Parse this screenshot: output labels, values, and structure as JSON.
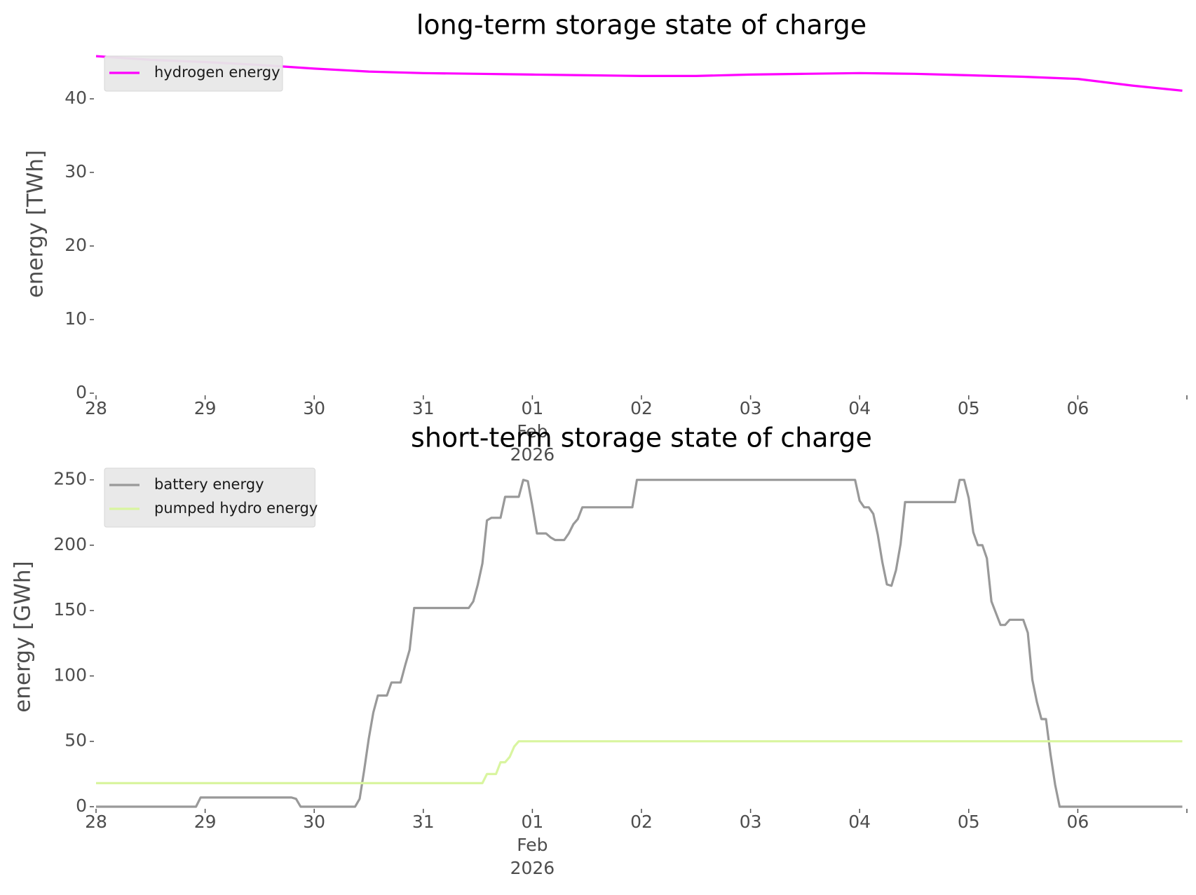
{
  "chart_data": [
    {
      "type": "line",
      "title": "long-term storage state of charge",
      "xlabel": "",
      "ylabel": "energy [TWh]",
      "xlim": [
        "2026-01-28",
        "2026-02-06T24:00"
      ],
      "ylim": [
        0,
        46
      ],
      "grid": false,
      "legend_position": "top-left",
      "x_tick_labels": [
        {
          "x": "2026-01-28",
          "label": "28"
        },
        {
          "x": "2026-01-29",
          "label": "29"
        },
        {
          "x": "2026-01-30",
          "label": "30"
        },
        {
          "x": "2026-01-31",
          "label": "31"
        },
        {
          "x": "2026-02-01",
          "label": "01"
        },
        {
          "x": "2026-02-02",
          "label": "02"
        },
        {
          "x": "2026-02-03",
          "label": "03"
        },
        {
          "x": "2026-02-04",
          "label": "04"
        },
        {
          "x": "2026-02-05",
          "label": "05"
        },
        {
          "x": "2026-02-06",
          "label": "06"
        }
      ],
      "x_tick_sublabel": {
        "x": "2026-02-01",
        "lines": [
          "Feb",
          "2026"
        ]
      },
      "y_ticks": [
        0,
        10,
        20,
        30,
        40
      ],
      "series": [
        {
          "name": "hydrogen energy",
          "color": "#ff00ff",
          "points": [
            [
              "2026-01-28T00:00",
              45.8
            ],
            [
              "2026-01-28T12:00",
              45.3
            ],
            [
              "2026-01-29T00:00",
              45.0
            ],
            [
              "2026-01-29T12:00",
              44.6
            ],
            [
              "2026-01-30T00:00",
              44.1
            ],
            [
              "2026-01-30T12:00",
              43.7
            ],
            [
              "2026-01-31T00:00",
              43.5
            ],
            [
              "2026-01-31T12:00",
              43.4
            ],
            [
              "2026-02-01T00:00",
              43.3
            ],
            [
              "2026-02-01T12:00",
              43.2
            ],
            [
              "2026-02-02T00:00",
              43.1
            ],
            [
              "2026-02-02T12:00",
              43.1
            ],
            [
              "2026-02-03T00:00",
              43.3
            ],
            [
              "2026-02-03T12:00",
              43.4
            ],
            [
              "2026-02-04T00:00",
              43.5
            ],
            [
              "2026-02-04T12:00",
              43.4
            ],
            [
              "2026-02-05T00:00",
              43.2
            ],
            [
              "2026-02-05T12:00",
              43.0
            ],
            [
              "2026-02-06T00:00",
              42.7
            ],
            [
              "2026-02-06T12:00",
              41.8
            ],
            [
              "2026-02-06T23:00",
              41.1
            ]
          ]
        }
      ]
    },
    {
      "type": "line",
      "title": "short-term storage state of charge",
      "xlabel": "",
      "ylabel": "energy [GWh]",
      "xlim": [
        "2026-01-28",
        "2026-02-06T24:00"
      ],
      "ylim": [
        0,
        260
      ],
      "grid": false,
      "legend_position": "top-left",
      "x_tick_labels": [
        {
          "x": "2026-01-28",
          "label": "28"
        },
        {
          "x": "2026-01-29",
          "label": "29"
        },
        {
          "x": "2026-01-30",
          "label": "30"
        },
        {
          "x": "2026-01-31",
          "label": "31"
        },
        {
          "x": "2026-02-01",
          "label": "01"
        },
        {
          "x": "2026-02-02",
          "label": "02"
        },
        {
          "x": "2026-02-03",
          "label": "03"
        },
        {
          "x": "2026-02-04",
          "label": "04"
        },
        {
          "x": "2026-02-05",
          "label": "05"
        },
        {
          "x": "2026-02-06",
          "label": "06"
        }
      ],
      "x_tick_sublabel": {
        "x": "2026-02-01",
        "lines": [
          "Feb",
          "2026"
        ]
      },
      "y_ticks": [
        0,
        50,
        100,
        150,
        200,
        250
      ],
      "series": [
        {
          "name": "battery energy",
          "color": "#999999",
          "points": [
            [
              "2026-01-28T00:00",
              0
            ],
            [
              "2026-01-28T22:00",
              0
            ],
            [
              "2026-01-28T23:00",
              7
            ],
            [
              "2026-01-29T19:00",
              7
            ],
            [
              "2026-01-29T20:00",
              6
            ],
            [
              "2026-01-29T21:00",
              0
            ],
            [
              "2026-01-30T09:00",
              0
            ],
            [
              "2026-01-30T10:00",
              6
            ],
            [
              "2026-01-30T11:00",
              28
            ],
            [
              "2026-01-30T12:00",
              52
            ],
            [
              "2026-01-30T13:00",
              72
            ],
            [
              "2026-01-30T14:00",
              85
            ],
            [
              "2026-01-30T16:00",
              85
            ],
            [
              "2026-01-30T17:00",
              95
            ],
            [
              "2026-01-30T19:00",
              95
            ],
            [
              "2026-01-30T20:00",
              108
            ],
            [
              "2026-01-30T21:00",
              120
            ],
            [
              "2026-01-30T22:00",
              152
            ],
            [
              "2026-01-31T10:00",
              152
            ],
            [
              "2026-01-31T11:00",
              157
            ],
            [
              "2026-01-31T12:00",
              170
            ],
            [
              "2026-01-31T13:00",
              186
            ],
            [
              "2026-01-31T14:00",
              219
            ],
            [
              "2026-01-31T15:00",
              221
            ],
            [
              "2026-01-31T17:00",
              221
            ],
            [
              "2026-01-31T18:00",
              237
            ],
            [
              "2026-01-31T21:00",
              237
            ],
            [
              "2026-01-31T22:00",
              250
            ],
            [
              "2026-01-31T23:00",
              249
            ],
            [
              "2026-02-01T00:00",
              230
            ],
            [
              "2026-02-01T01:00",
              209
            ],
            [
              "2026-02-01T03:00",
              209
            ],
            [
              "2026-02-01T04:00",
              206
            ],
            [
              "2026-02-01T05:00",
              204
            ],
            [
              "2026-02-01T07:00",
              204
            ],
            [
              "2026-02-01T08:00",
              209
            ],
            [
              "2026-02-01T09:00",
              216
            ],
            [
              "2026-02-01T10:00",
              220
            ],
            [
              "2026-02-01T11:00",
              229
            ],
            [
              "2026-02-01T22:00",
              229
            ],
            [
              "2026-02-01T23:00",
              250
            ],
            [
              "2026-02-03T23:00",
              250
            ],
            [
              "2026-02-04T00:00",
              234
            ],
            [
              "2026-02-04T01:00",
              229
            ],
            [
              "2026-02-04T02:00",
              229
            ],
            [
              "2026-02-04T03:00",
              224
            ],
            [
              "2026-02-04T04:00",
              208
            ],
            [
              "2026-02-04T05:00",
              187
            ],
            [
              "2026-02-04T06:00",
              170
            ],
            [
              "2026-02-04T07:00",
              169
            ],
            [
              "2026-02-04T08:00",
              181
            ],
            [
              "2026-02-04T09:00",
              201
            ],
            [
              "2026-02-04T10:00",
              233
            ],
            [
              "2026-02-04T21:00",
              233
            ],
            [
              "2026-02-04T22:00",
              250
            ],
            [
              "2026-02-04T23:00",
              250
            ],
            [
              "2026-02-05T00:00",
              236
            ],
            [
              "2026-02-05T01:00",
              210
            ],
            [
              "2026-02-05T02:00",
              200
            ],
            [
              "2026-02-05T03:00",
              200
            ],
            [
              "2026-02-05T04:00",
              190
            ],
            [
              "2026-02-05T05:00",
              157
            ],
            [
              "2026-02-05T06:00",
              148
            ],
            [
              "2026-02-05T07:00",
              139
            ],
            [
              "2026-02-05T08:00",
              139
            ],
            [
              "2026-02-05T09:00",
              143
            ],
            [
              "2026-02-05T11:00",
              143
            ],
            [
              "2026-02-05T12:00",
              143
            ],
            [
              "2026-02-05T13:00",
              133
            ],
            [
              "2026-02-05T14:00",
              97
            ],
            [
              "2026-02-05T15:00",
              80
            ],
            [
              "2026-02-05T16:00",
              67
            ],
            [
              "2026-02-05T17:00",
              67
            ],
            [
              "2026-02-05T18:00",
              40
            ],
            [
              "2026-02-05T19:00",
              17
            ],
            [
              "2026-02-05T20:00",
              0
            ],
            [
              "2026-02-06T23:00",
              0
            ]
          ]
        },
        {
          "name": "pumped hydro energy",
          "color": "#d9f5a0",
          "points": [
            [
              "2026-01-28T00:00",
              18
            ],
            [
              "2026-01-31T13:00",
              18
            ],
            [
              "2026-01-31T14:00",
              25
            ],
            [
              "2026-01-31T16:00",
              25
            ],
            [
              "2026-01-31T17:00",
              34
            ],
            [
              "2026-01-31T18:00",
              34
            ],
            [
              "2026-01-31T19:00",
              38
            ],
            [
              "2026-01-31T20:00",
              46
            ],
            [
              "2026-01-31T21:00",
              50
            ],
            [
              "2026-02-06T23:00",
              50
            ]
          ]
        }
      ]
    }
  ]
}
